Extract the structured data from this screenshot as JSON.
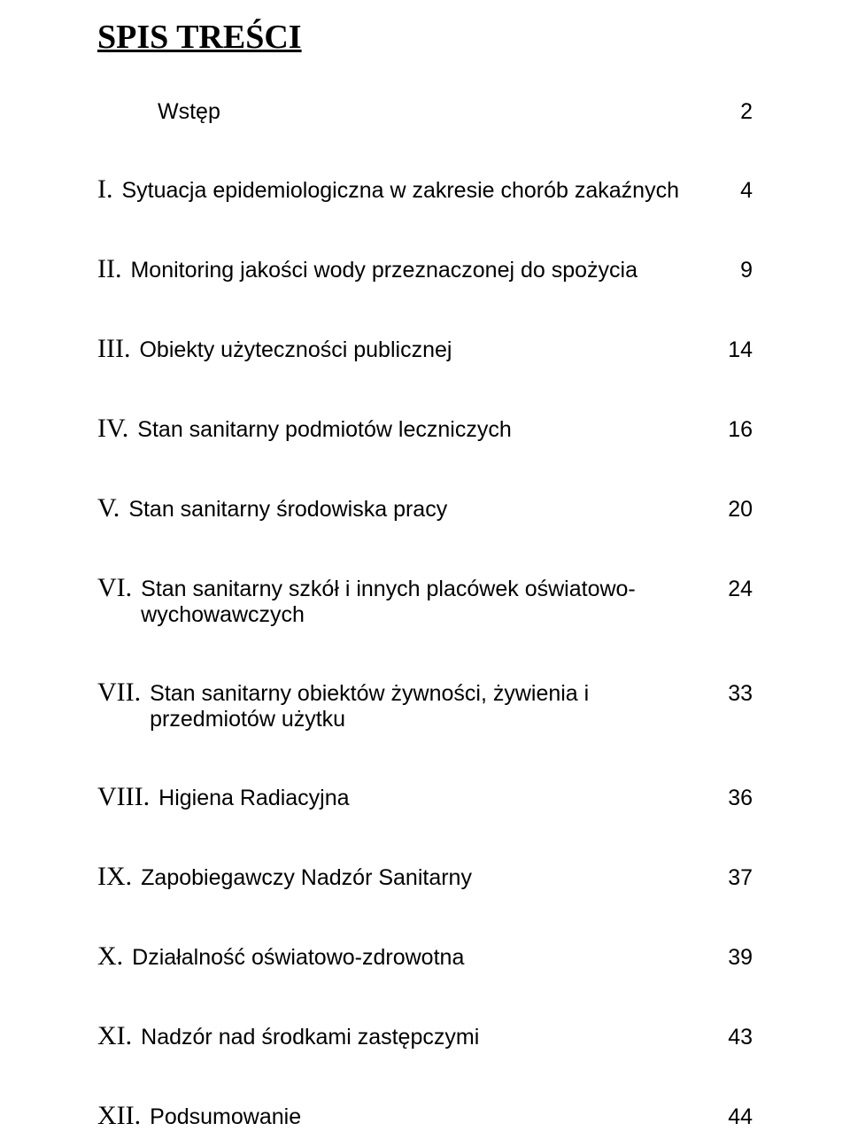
{
  "title": "SPIS TREŚCI",
  "colors": {
    "text": "#000000",
    "background": "#ffffff"
  },
  "toc": {
    "intro": {
      "label": "Wstęp",
      "page": "2"
    },
    "items": [
      {
        "marker": "I.",
        "label": "Sytuacja epidemiologiczna w zakresie chorób zakaźnych",
        "page": "4"
      },
      {
        "marker": "II.",
        "label": "Monitoring jakości wody przeznaczonej do spożycia",
        "page": "9"
      },
      {
        "marker": "III.",
        "label": "Obiekty użyteczności publicznej",
        "page": "14"
      },
      {
        "marker": "IV.",
        "label": "Stan sanitarny podmiotów leczniczych",
        "page": "16"
      },
      {
        "marker": "V.",
        "label": "Stan sanitarny środowiska pracy",
        "page": "20"
      },
      {
        "marker": "VI.",
        "label": "Stan sanitarny szkół i innych placówek oświatowo-wychowawczych",
        "page": "24"
      },
      {
        "marker": "VII.",
        "label": "Stan sanitarny obiektów żywności, żywienia i przedmiotów użytku",
        "page": "33"
      },
      {
        "marker": "VIII.",
        "label": "Higiena Radiacyjna",
        "page": "36"
      },
      {
        "marker": "IX.",
        "label": "Zapobiegawczy Nadzór Sanitarny",
        "page": "37"
      },
      {
        "marker": "X.",
        "label": "Działalność oświatowo-zdrowotna",
        "page": "39"
      },
      {
        "marker": "XI.",
        "label": "Nadzór nad środkami zastępczymi",
        "page": "43"
      },
      {
        "marker": "XII.",
        "label": "Podsumowanie",
        "page": "44"
      }
    ]
  }
}
